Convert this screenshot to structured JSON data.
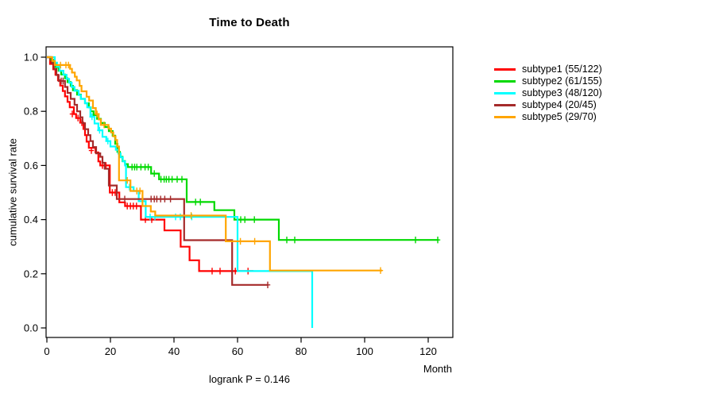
{
  "header": {
    "title": "Time to Death"
  },
  "axes": {
    "x_label": "Month",
    "y_label": "cumulative survival rate",
    "x_ticks": [
      {
        "v": 0,
        "label": "0"
      },
      {
        "v": 20,
        "label": "20"
      },
      {
        "v": 40,
        "label": "40"
      },
      {
        "v": 60,
        "label": "60"
      },
      {
        "v": 80,
        "label": "80"
      },
      {
        "v": 100,
        "label": "100"
      },
      {
        "v": 120,
        "label": "120"
      }
    ],
    "y_ticks": [
      {
        "v": 0.0,
        "label": "0.0"
      },
      {
        "v": 0.2,
        "label": "0.2"
      },
      {
        "v": 0.4,
        "label": "0.4"
      },
      {
        "v": 0.6,
        "label": "0.6"
      },
      {
        "v": 0.8,
        "label": "0.8"
      },
      {
        "v": 1.0,
        "label": "1.0"
      }
    ]
  },
  "footnote": {
    "text": "logrank P = 0.146"
  },
  "chart_data": {
    "type": "line",
    "subtype": "kaplan-meier-step",
    "title": "Time to Death",
    "xlabel": "Month",
    "ylabel": "cumulative survival rate",
    "xlim": [
      0,
      127.75
    ],
    "ylim": [
      0.0,
      1.0
    ],
    "grid": false,
    "legend_position": "right",
    "annotation": "logrank P = 0.146",
    "axis_color": "#000000",
    "series": [
      {
        "name": "subtype1",
        "label": "subtype1 (55/122)",
        "events": "55/122",
        "color": "#ff0000",
        "end_month": 65,
        "steps": [
          [
            0,
            1.0
          ],
          [
            1,
            0.975
          ],
          [
            2,
            0.955
          ],
          [
            2.7,
            0.935
          ],
          [
            3.5,
            0.915
          ],
          [
            4.2,
            0.895
          ],
          [
            5,
            0.875
          ],
          [
            5.7,
            0.855
          ],
          [
            6.5,
            0.835
          ],
          [
            7.2,
            0.815
          ],
          [
            8.5,
            0.79
          ],
          [
            9.2,
            0.775
          ],
          [
            10.5,
            0.758
          ],
          [
            11.5,
            0.735
          ],
          [
            12,
            0.712
          ],
          [
            12.5,
            0.688
          ],
          [
            13.2,
            0.665
          ],
          [
            15.3,
            0.648
          ],
          [
            16.2,
            0.615
          ],
          [
            16.8,
            0.6
          ],
          [
            19.8,
            0.5
          ],
          [
            22.8,
            0.464
          ],
          [
            24.6,
            0.45
          ],
          [
            29.6,
            0.4
          ],
          [
            37,
            0.36
          ],
          [
            42.1,
            0.3
          ],
          [
            44.9,
            0.25
          ],
          [
            47.9,
            0.21
          ]
        ],
        "censors": [
          [
            8,
            0.79
          ],
          [
            9.8,
            0.775
          ],
          [
            11,
            0.758
          ],
          [
            14,
            0.655
          ],
          [
            17.5,
            0.6
          ],
          [
            18.6,
            0.6
          ],
          [
            20.6,
            0.5
          ],
          [
            21.5,
            0.5
          ],
          [
            25.3,
            0.45
          ],
          [
            26.3,
            0.45
          ],
          [
            27.2,
            0.45
          ],
          [
            28.2,
            0.45
          ],
          [
            31,
            0.4
          ],
          [
            33,
            0.4
          ],
          [
            52,
            0.21
          ],
          [
            54.5,
            0.21
          ],
          [
            58.3,
            0.21
          ],
          [
            59.3,
            0.21
          ],
          [
            63.3,
            0.21
          ]
        ]
      },
      {
        "name": "subtype2",
        "label": "subtype2 (61/155)",
        "events": "61/155",
        "color": "#00d900",
        "end_month": 123.3,
        "steps": [
          [
            0,
            1.0
          ],
          [
            1.2,
            0.99
          ],
          [
            2,
            0.977
          ],
          [
            2.8,
            0.963
          ],
          [
            3.7,
            0.95
          ],
          [
            4.5,
            0.936
          ],
          [
            5.7,
            0.922
          ],
          [
            6.5,
            0.908
          ],
          [
            7.5,
            0.894
          ],
          [
            8.2,
            0.878
          ],
          [
            9.5,
            0.862
          ],
          [
            10.7,
            0.846
          ],
          [
            12,
            0.83
          ],
          [
            13.2,
            0.815
          ],
          [
            13.8,
            0.8
          ],
          [
            14.7,
            0.786
          ],
          [
            15.8,
            0.772
          ],
          [
            17,
            0.757
          ],
          [
            18.2,
            0.742
          ],
          [
            19.5,
            0.727
          ],
          [
            20.7,
            0.71
          ],
          [
            21.5,
            0.68
          ],
          [
            22.2,
            0.65
          ],
          [
            23,
            0.632
          ],
          [
            23.8,
            0.616
          ],
          [
            24.6,
            0.605
          ],
          [
            25.5,
            0.594
          ],
          [
            32.8,
            0.57
          ],
          [
            35.3,
            0.549
          ],
          [
            44,
            0.465
          ],
          [
            52.7,
            0.435
          ],
          [
            59,
            0.4
          ],
          [
            73,
            0.325
          ]
        ],
        "censors": [
          [
            26.8,
            0.594
          ],
          [
            27.6,
            0.594
          ],
          [
            28.3,
            0.594
          ],
          [
            29.6,
            0.594
          ],
          [
            30.9,
            0.594
          ],
          [
            31.9,
            0.594
          ],
          [
            33.8,
            0.57
          ],
          [
            35.9,
            0.549
          ],
          [
            36.9,
            0.549
          ],
          [
            37.6,
            0.549
          ],
          [
            38.4,
            0.549
          ],
          [
            39.4,
            0.549
          ],
          [
            41,
            0.549
          ],
          [
            42.5,
            0.549
          ],
          [
            46.8,
            0.465
          ],
          [
            48.3,
            0.465
          ],
          [
            61,
            0.4
          ],
          [
            62.3,
            0.4
          ],
          [
            65.3,
            0.4
          ],
          [
            75.5,
            0.325
          ],
          [
            78,
            0.325
          ],
          [
            116,
            0.325
          ],
          [
            123,
            0.325
          ]
        ]
      },
      {
        "name": "subtype3",
        "label": "subtype3 (48/120)",
        "events": "48/120",
        "color": "#00ffff",
        "end_month": 83.5,
        "steps": [
          [
            0,
            1.0
          ],
          [
            2.5,
            0.98
          ],
          [
            3.2,
            0.965
          ],
          [
            4,
            0.95
          ],
          [
            5.2,
            0.935
          ],
          [
            6.2,
            0.92
          ],
          [
            7,
            0.906
          ],
          [
            7.8,
            0.89
          ],
          [
            8.7,
            0.876
          ],
          [
            10,
            0.86
          ],
          [
            10.7,
            0.846
          ],
          [
            12,
            0.83
          ],
          [
            12.7,
            0.815
          ],
          [
            13.7,
            0.78
          ],
          [
            15,
            0.755
          ],
          [
            16.2,
            0.73
          ],
          [
            17.5,
            0.706
          ],
          [
            18.7,
            0.69
          ],
          [
            20,
            0.67
          ],
          [
            21.7,
            0.658
          ],
          [
            22.5,
            0.644
          ],
          [
            23.2,
            0.63
          ],
          [
            23.9,
            0.615
          ],
          [
            24.6,
            0.6
          ],
          [
            24.9,
            0.52
          ],
          [
            27.3,
            0.506
          ],
          [
            28.9,
            0.468
          ],
          [
            31.1,
            0.41
          ],
          [
            60,
            0.21
          ],
          [
            83.5,
            0.0
          ]
        ],
        "censors": [
          [
            14.2,
            0.78
          ],
          [
            16.6,
            0.73
          ],
          [
            19.2,
            0.69
          ],
          [
            26,
            0.52
          ],
          [
            32.5,
            0.41
          ],
          [
            34,
            0.41
          ],
          [
            40.5,
            0.41
          ],
          [
            42,
            0.41
          ],
          [
            45.6,
            0.41
          ]
        ]
      },
      {
        "name": "subtype4",
        "label": "subtype4 (20/45)",
        "events": "20/45",
        "color": "#a52a2a",
        "end_month": 69.7,
        "steps": [
          [
            0,
            1.0
          ],
          [
            1.5,
            0.978
          ],
          [
            2.2,
            0.956
          ],
          [
            3,
            0.934
          ],
          [
            3.7,
            0.912
          ],
          [
            5.7,
            0.89
          ],
          [
            6.5,
            0.868
          ],
          [
            7.5,
            0.846
          ],
          [
            8.7,
            0.824
          ],
          [
            9.5,
            0.8
          ],
          [
            10.5,
            0.778
          ],
          [
            11.2,
            0.756
          ],
          [
            12,
            0.734
          ],
          [
            13,
            0.712
          ],
          [
            13.7,
            0.69
          ],
          [
            14.5,
            0.668
          ],
          [
            15.5,
            0.645
          ],
          [
            16.8,
            0.632
          ],
          [
            17.5,
            0.61
          ],
          [
            18.2,
            0.588
          ],
          [
            19.5,
            0.526
          ],
          [
            22,
            0.476
          ],
          [
            43.2,
            0.324
          ],
          [
            58.3,
            0.159
          ]
        ],
        "censors": [
          [
            4.5,
            0.912
          ],
          [
            5.1,
            0.912
          ],
          [
            24.5,
            0.476
          ],
          [
            32.8,
            0.476
          ],
          [
            33.8,
            0.476
          ],
          [
            34.6,
            0.476
          ],
          [
            35.8,
            0.476
          ],
          [
            37.1,
            0.476
          ],
          [
            38.9,
            0.476
          ],
          [
            69.5,
            0.159
          ]
        ]
      },
      {
        "name": "subtype5",
        "label": "subtype5 (29/70)",
        "events": "29/70",
        "color": "#ffa500",
        "end_month": 105.5,
        "steps": [
          [
            0,
            1.0
          ],
          [
            1.7,
            0.986
          ],
          [
            2.5,
            0.971
          ],
          [
            7.3,
            0.957
          ],
          [
            7.9,
            0.943
          ],
          [
            8.8,
            0.928
          ],
          [
            9.4,
            0.914
          ],
          [
            10.3,
            0.894
          ],
          [
            10.9,
            0.874
          ],
          [
            12.5,
            0.854
          ],
          [
            13.3,
            0.84
          ],
          [
            14.5,
            0.812
          ],
          [
            15.4,
            0.79
          ],
          [
            16.3,
            0.77
          ],
          [
            17,
            0.75
          ],
          [
            19.4,
            0.736
          ],
          [
            20.2,
            0.722
          ],
          [
            20.9,
            0.708
          ],
          [
            21.6,
            0.694
          ],
          [
            22.1,
            0.67
          ],
          [
            22.7,
            0.545
          ],
          [
            26.3,
            0.506
          ],
          [
            30.1,
            0.45
          ],
          [
            32.7,
            0.43
          ],
          [
            34.1,
            0.415
          ],
          [
            56.3,
            0.32
          ],
          [
            70.2,
            0.212
          ]
        ],
        "censors": [
          [
            4.3,
            0.971
          ],
          [
            6,
            0.971
          ],
          [
            6.8,
            0.971
          ],
          [
            15.8,
            0.79
          ],
          [
            18,
            0.75
          ],
          [
            25.3,
            0.545
          ],
          [
            28.3,
            0.506
          ],
          [
            29.3,
            0.506
          ],
          [
            45.4,
            0.415
          ],
          [
            60.9,
            0.32
          ],
          [
            65.4,
            0.32
          ],
          [
            105,
            0.212
          ]
        ]
      }
    ]
  }
}
